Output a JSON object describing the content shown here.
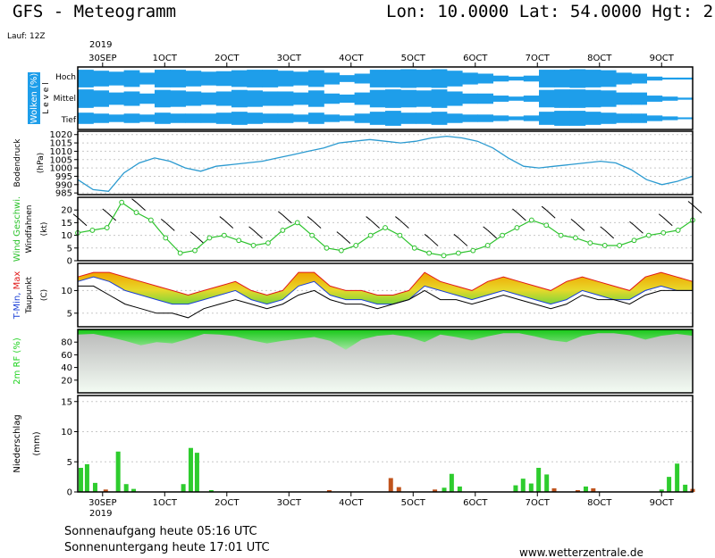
{
  "header": {
    "title": "GFS - Meteogramm",
    "location": "Lon: 10.0000 Lat: 54.0000 Hgt: 2",
    "run": "Lauf: 12Z"
  },
  "footer": {
    "sunrise": "Sonnenaufgang heute 05:16 UTC",
    "sunset": "Sonnenuntergang heute 17:01 UTC",
    "site": "www.wetterzentrale.de"
  },
  "chart_data": {
    "type": "meteogram",
    "x_axis": {
      "year_top": "2019",
      "year_bottom": "2019",
      "tick_labels": [
        "30SEP",
        "1OCT",
        "2OCT",
        "3OCT",
        "4OCT",
        "5OCT",
        "6OCT",
        "7OCT",
        "8OCT",
        "9OCT"
      ],
      "day_start": 29.6,
      "day_end": 39.5
    },
    "colors": {
      "cloud": "#1e9eea",
      "pressure": "#2b9ad0",
      "wind": "#2cc22c",
      "tmin": "#1a3fd6",
      "tmax": "#e01818",
      "rh": "#1ed21e",
      "precip_rain": "#2ecc2e",
      "precip_other": "#c0541d"
    },
    "panels": [
      {
        "id": "clouds",
        "ylabel": "Wolken (%)",
        "ylabel2": "L e v e l",
        "levels": [
          "Hoch",
          "Mittel",
          "Tief"
        ],
        "coverage_high": [
          0.9,
          0.8,
          0.7,
          0.85,
          0.6,
          0.9,
          0.9,
          0.8,
          0.7,
          0.75,
          0.85,
          0.9,
          0.9,
          0.8,
          0.7,
          0.85,
          0.6,
          0.35,
          0.5,
          0.9,
          0.9,
          0.95,
          0.9,
          0.95,
          0.8,
          0.6,
          0.5,
          0.3,
          0.2,
          0.3,
          0.9,
          0.9,
          0.95,
          0.9,
          0.85,
          0.6,
          0.5,
          0.2,
          0.1,
          0.1
        ],
        "coverage_mid": [
          0.9,
          0.8,
          0.6,
          0.7,
          0.5,
          0.85,
          0.8,
          0.7,
          0.6,
          0.7,
          0.85,
          0.8,
          0.7,
          0.7,
          0.6,
          0.8,
          0.5,
          0.4,
          0.6,
          0.85,
          0.9,
          0.85,
          0.8,
          0.9,
          0.7,
          0.5,
          0.5,
          0.3,
          0.2,
          0.3,
          0.85,
          0.9,
          0.9,
          0.85,
          0.8,
          0.6,
          0.6,
          0.3,
          0.2,
          0.1
        ],
        "coverage_low": [
          0.6,
          0.5,
          0.4,
          0.5,
          0.4,
          0.6,
          0.5,
          0.5,
          0.5,
          0.6,
          0.7,
          0.6,
          0.5,
          0.5,
          0.4,
          0.6,
          0.4,
          0.3,
          0.5,
          0.7,
          0.8,
          0.6,
          0.6,
          0.7,
          0.5,
          0.4,
          0.4,
          0.3,
          0.2,
          0.3,
          0.7,
          0.8,
          0.8,
          0.7,
          0.6,
          0.5,
          0.5,
          0.3,
          0.2,
          0.1
        ]
      },
      {
        "id": "pressure",
        "ylabel": "Bodendruck",
        "yunit": "(hPa)",
        "yticks": [
          985,
          990,
          995,
          1000,
          1005,
          1010,
          1015,
          1020
        ],
        "ylim": [
          984,
          1022
        ],
        "values": [
          993,
          987,
          986,
          997,
          1003,
          1006,
          1004,
          1000,
          998,
          1001,
          1002,
          1003,
          1004,
          1006,
          1008,
          1010,
          1012,
          1015,
          1016,
          1017,
          1016,
          1015,
          1016,
          1018,
          1019,
          1018,
          1016,
          1012,
          1006,
          1001,
          1000,
          1001,
          1002,
          1003,
          1004,
          1003,
          999,
          993,
          990,
          992,
          995
        ]
      },
      {
        "id": "wind",
        "ylabel": "Wind Geschwi.",
        "ylabel2": "Windfahnen",
        "yunit": "(kt)",
        "yticks": [
          0,
          5,
          10,
          15,
          20
        ],
        "ylim": [
          0,
          25
        ],
        "speed_kt": [
          11,
          12,
          13,
          23,
          19,
          16,
          9,
          3,
          4,
          9,
          10,
          8,
          6,
          7,
          12,
          15,
          10,
          5,
          4,
          6,
          10,
          13,
          10,
          5,
          3,
          2,
          3,
          4,
          6,
          10,
          13,
          16,
          14,
          10,
          9,
          7,
          6,
          6,
          8,
          10,
          11,
          12,
          16
        ]
      },
      {
        "id": "temperature",
        "ylabel": "T-Min, Max",
        "ylabel2": "Taupunkt",
        "yunit": "(C)",
        "yticks": [
          5,
          10
        ],
        "ylim": [
          2,
          16
        ],
        "tmax": [
          13,
          14,
          14,
          13,
          12,
          11,
          10,
          9,
          10,
          11,
          12,
          10,
          9,
          10,
          14,
          14,
          11,
          10,
          10,
          9,
          9,
          10,
          14,
          12,
          11,
          10,
          12,
          13,
          12,
          11,
          10,
          12,
          13,
          12,
          11,
          10,
          13,
          14,
          13,
          12
        ],
        "tmin": [
          12,
          13,
          12,
          10,
          9,
          8,
          7,
          7,
          8,
          9,
          10,
          8,
          7,
          8,
          11,
          12,
          9,
          8,
          8,
          7,
          7,
          8,
          11,
          10,
          9,
          8,
          9,
          10,
          9,
          8,
          7,
          8,
          10,
          9,
          8,
          8,
          10,
          11,
          10,
          10
        ],
        "dewpoint": [
          11,
          11,
          9,
          7,
          6,
          5,
          5,
          4,
          6,
          7,
          8,
          7,
          6,
          7,
          9,
          10,
          8,
          7,
          7,
          6,
          7,
          8,
          10,
          8,
          8,
          7,
          8,
          9,
          8,
          7,
          6,
          7,
          9,
          8,
          8,
          7,
          9,
          10,
          10,
          10
        ]
      },
      {
        "id": "humidity",
        "ylabel": "2m RF (%)",
        "yticks": [
          20,
          40,
          60,
          80
        ],
        "ylim": [
          0,
          100
        ],
        "values": [
          92,
          93,
          88,
          82,
          75,
          80,
          78,
          85,
          93,
          92,
          89,
          83,
          78,
          82,
          85,
          88,
          82,
          68,
          84,
          90,
          92,
          88,
          80,
          92,
          88,
          83,
          89,
          94,
          94,
          89,
          83,
          80,
          90,
          94,
          94,
          91,
          84,
          90,
          93,
          90
        ]
      },
      {
        "id": "precipitation",
        "ylabel": "Niederschlag",
        "yunit": "(mm)",
        "yticks": [
          0,
          5,
          10,
          15
        ],
        "ylim": [
          0,
          16
        ],
        "bars": [
          {
            "day": 29.65,
            "mm": 4.0,
            "kind": "rain"
          },
          {
            "day": 29.75,
            "mm": 4.6,
            "kind": "rain"
          },
          {
            "day": 29.88,
            "mm": 1.5,
            "kind": "rain"
          },
          {
            "day": 30.05,
            "mm": 0.4,
            "kind": "other"
          },
          {
            "day": 30.25,
            "mm": 6.7,
            "kind": "rain"
          },
          {
            "day": 30.38,
            "mm": 1.3,
            "kind": "rain"
          },
          {
            "day": 30.5,
            "mm": 0.5,
            "kind": "rain"
          },
          {
            "day": 31.3,
            "mm": 1.3,
            "kind": "rain"
          },
          {
            "day": 31.42,
            "mm": 7.3,
            "kind": "rain"
          },
          {
            "day": 31.52,
            "mm": 6.5,
            "kind": "rain"
          },
          {
            "day": 31.75,
            "mm": 0.3,
            "kind": "rain"
          },
          {
            "day": 33.65,
            "mm": 0.3,
            "kind": "other"
          },
          {
            "day": 34.64,
            "mm": 2.3,
            "kind": "other"
          },
          {
            "day": 34.77,
            "mm": 0.8,
            "kind": "other"
          },
          {
            "day": 35.35,
            "mm": 0.4,
            "kind": "other"
          },
          {
            "day": 35.5,
            "mm": 0.7,
            "kind": "rain"
          },
          {
            "day": 35.62,
            "mm": 3.0,
            "kind": "rain"
          },
          {
            "day": 35.75,
            "mm": 0.9,
            "kind": "rain"
          },
          {
            "day": 36.65,
            "mm": 1.1,
            "kind": "rain"
          },
          {
            "day": 36.77,
            "mm": 2.2,
            "kind": "rain"
          },
          {
            "day": 36.9,
            "mm": 1.4,
            "kind": "rain"
          },
          {
            "day": 37.02,
            "mm": 4.0,
            "kind": "rain"
          },
          {
            "day": 37.15,
            "mm": 2.9,
            "kind": "rain"
          },
          {
            "day": 37.27,
            "mm": 0.6,
            "kind": "other"
          },
          {
            "day": 37.65,
            "mm": 0.3,
            "kind": "other"
          },
          {
            "day": 37.78,
            "mm": 0.9,
            "kind": "rain"
          },
          {
            "day": 37.9,
            "mm": 0.6,
            "kind": "other"
          },
          {
            "day": 39.0,
            "mm": 0.4,
            "kind": "rain"
          },
          {
            "day": 39.12,
            "mm": 2.5,
            "kind": "rain"
          },
          {
            "day": 39.25,
            "mm": 4.7,
            "kind": "rain"
          },
          {
            "day": 39.38,
            "mm": 1.2,
            "kind": "rain"
          },
          {
            "day": 39.5,
            "mm": 0.5,
            "kind": "other"
          }
        ]
      }
    ]
  }
}
